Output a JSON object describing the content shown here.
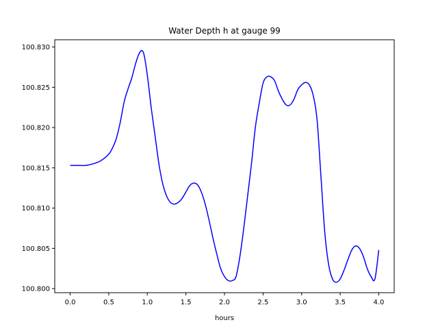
{
  "chart_data": {
    "type": "line",
    "title": "Water Depth h at gauge 99",
    "xlabel": "hours",
    "ylabel": "",
    "xlim": [
      -0.2,
      4.2
    ],
    "ylim": [
      100.7995,
      100.8309
    ],
    "xticks": [
      0.0,
      0.5,
      1.0,
      1.5,
      2.0,
      2.5,
      3.0,
      3.5,
      4.0
    ],
    "xtick_labels": [
      "0.0",
      "0.5",
      "1.0",
      "1.5",
      "2.0",
      "2.5",
      "3.0",
      "3.5",
      "4.0"
    ],
    "yticks": [
      100.8,
      100.805,
      100.81,
      100.815,
      100.82,
      100.825,
      100.83
    ],
    "ytick_labels": [
      "100.800",
      "100.805",
      "100.810",
      "100.815",
      "100.820",
      "100.825",
      "100.830"
    ],
    "grid": false,
    "series": [
      {
        "color": "#0000ff",
        "x": [
          0.0,
          0.1,
          0.2,
          0.3,
          0.4,
          0.5,
          0.55,
          0.6,
          0.65,
          0.7,
          0.75,
          0.8,
          0.85,
          0.9,
          0.95,
          1.0,
          1.05,
          1.1,
          1.15,
          1.2,
          1.25,
          1.3,
          1.35,
          1.4,
          1.45,
          1.5,
          1.55,
          1.6,
          1.65,
          1.7,
          1.75,
          1.8,
          1.85,
          1.9,
          1.95,
          2.0,
          2.05,
          2.1,
          2.15,
          2.2,
          2.25,
          2.3,
          2.35,
          2.4,
          2.45,
          2.5,
          2.55,
          2.6,
          2.65,
          2.7,
          2.75,
          2.8,
          2.85,
          2.9,
          2.95,
          3.0,
          3.05,
          3.1,
          3.15,
          3.2,
          3.25,
          3.3,
          3.35,
          3.4,
          3.45,
          3.5,
          3.55,
          3.6,
          3.65,
          3.7,
          3.75,
          3.8,
          3.85,
          3.9,
          3.95,
          4.0
        ],
        "y": [
          100.8153,
          100.8153,
          100.8153,
          100.8155,
          100.8159,
          100.8167,
          100.8175,
          100.8187,
          100.8207,
          100.8232,
          100.8248,
          100.8262,
          100.828,
          100.8293,
          100.8293,
          100.8265,
          100.8225,
          100.819,
          100.8155,
          100.813,
          100.8115,
          100.8107,
          100.8105,
          100.8107,
          100.8112,
          100.812,
          100.8128,
          100.8131,
          100.8129,
          100.812,
          100.8105,
          100.8085,
          100.8063,
          100.8043,
          100.8025,
          100.8015,
          100.801,
          100.801,
          100.8015,
          100.804,
          100.8075,
          100.8115,
          100.8155,
          100.82,
          100.823,
          100.8255,
          100.8263,
          100.8263,
          100.8258,
          100.8245,
          100.8235,
          100.8228,
          100.8228,
          100.8235,
          100.8247,
          100.8253,
          100.8256,
          100.8253,
          100.824,
          100.821,
          100.814,
          100.807,
          100.803,
          100.8012,
          100.8008,
          100.8012,
          100.8023,
          100.8036,
          100.8048,
          100.8053,
          100.805,
          100.804,
          100.8025,
          100.8015,
          100.8012,
          100.8048
        ],
        "values_note": ""
      }
    ]
  }
}
